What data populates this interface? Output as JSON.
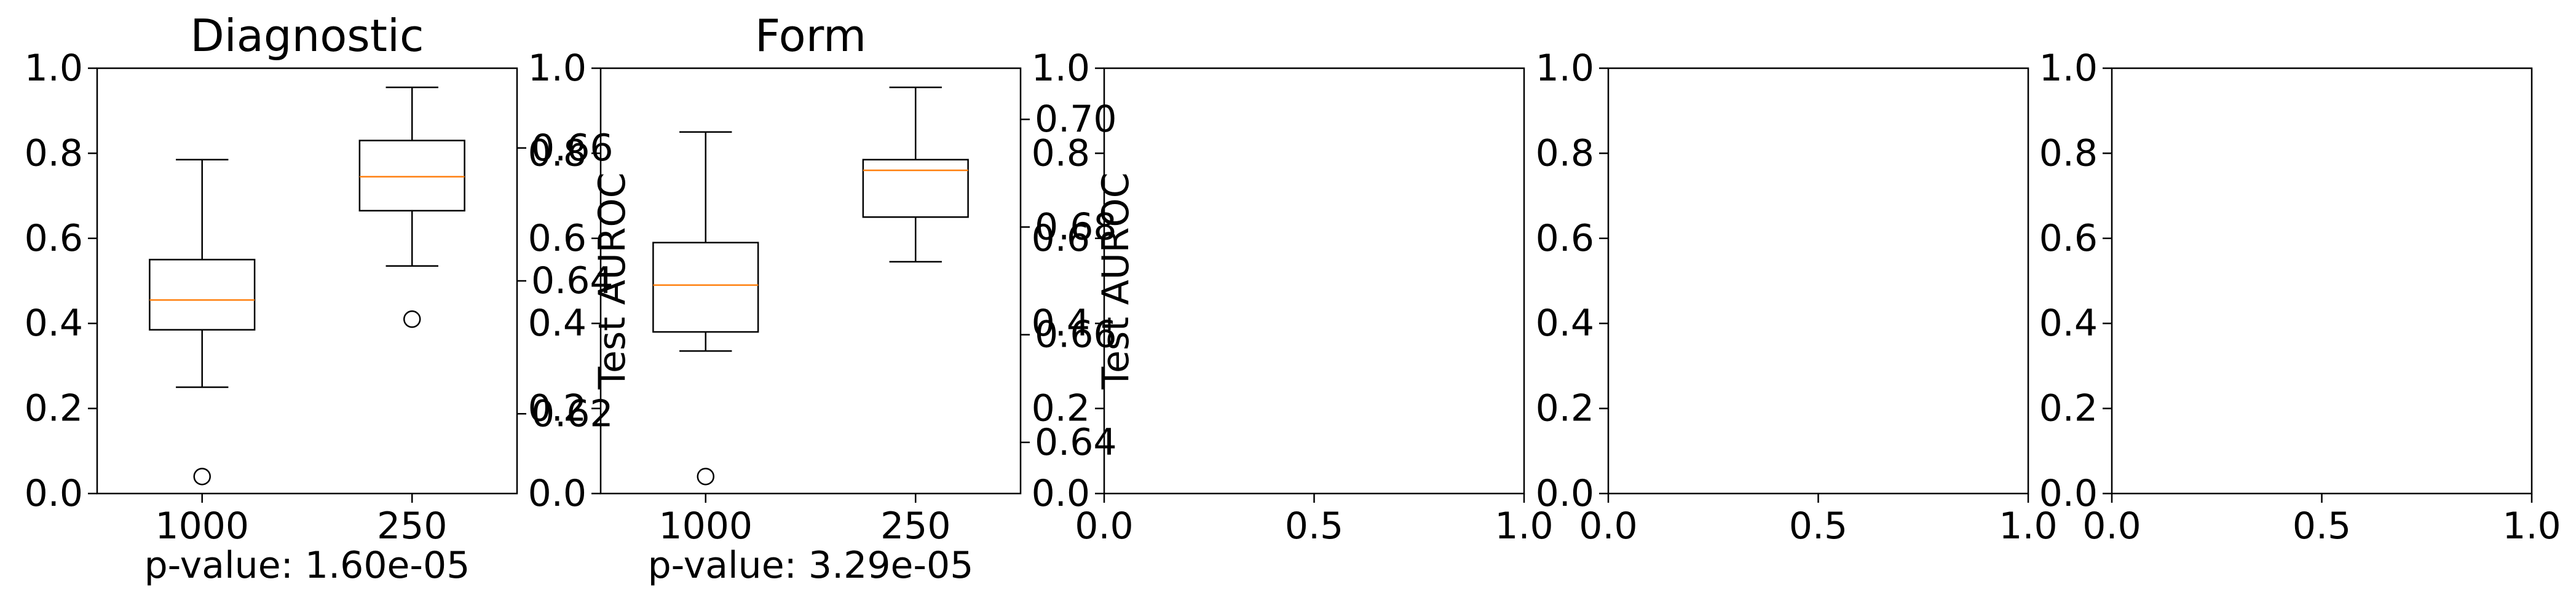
{
  "figure": {
    "y_ticks_default": [
      "0.0",
      "0.2",
      "0.4",
      "0.6",
      "0.8",
      "1.0"
    ],
    "x_ticks_default": [
      "0.0",
      "0.5",
      "1.0"
    ]
  },
  "chart_data": [
    {
      "type": "box",
      "title": "Diagnostic",
      "ylabel": "",
      "categories": [
        "1000",
        "250"
      ],
      "ylim": [
        0,
        1
      ],
      "y_ticks": [
        "0.0",
        "0.2",
        "0.4",
        "0.6",
        "0.8",
        "1.0"
      ],
      "boxes": [
        {
          "category": "1000",
          "whisker_low": 0.25,
          "q1": 0.385,
          "median": 0.455,
          "q3": 0.55,
          "whisker_high": 0.785,
          "fliers": [
            0.04
          ]
        },
        {
          "category": "250",
          "whisker_low": 0.535,
          "q1": 0.665,
          "median": 0.745,
          "q3": 0.83,
          "whisker_high": 0.955,
          "fliers": [
            0.41
          ]
        }
      ],
      "note": "p-value: 1.60e-05",
      "twin_axis": {
        "ylabel": "Test AUROC",
        "ylim": [
          0.608,
          0.672
        ],
        "ticks": [
          0.62,
          0.64,
          0.66
        ],
        "tick_labels": [
          "0.62",
          "0.64",
          "0.66"
        ]
      }
    },
    {
      "type": "box",
      "title": "Form",
      "ylabel": "",
      "categories": [
        "1000",
        "250"
      ],
      "ylim": [
        0,
        1
      ],
      "y_ticks": [
        "0.0",
        "0.2",
        "0.4",
        "0.6",
        "0.8",
        "1.0"
      ],
      "boxes": [
        {
          "category": "1000",
          "whisker_low": 0.335,
          "q1": 0.38,
          "median": 0.49,
          "q3": 0.59,
          "whisker_high": 0.85,
          "fliers": [
            0.04
          ]
        },
        {
          "category": "250",
          "whisker_low": 0.545,
          "q1": 0.65,
          "median": 0.76,
          "q3": 0.785,
          "whisker_high": 0.955,
          "fliers": []
        }
      ],
      "note": "p-value: 3.29e-05",
      "twin_axis": {
        "ylabel": "Test AUROC",
        "ylim": [
          0.6305,
          0.7095
        ],
        "ticks": [
          0.64,
          0.66,
          0.68,
          0.7
        ],
        "tick_labels": [
          "0.64",
          "0.66",
          "0.68",
          "0.70"
        ]
      }
    },
    {
      "type": "empty",
      "xlim": [
        0,
        1
      ],
      "ylim": [
        0,
        1
      ],
      "x_ticks": [
        "0.0",
        "0.5",
        "1.0"
      ],
      "y_ticks": [
        "0.0",
        "0.2",
        "0.4",
        "0.6",
        "0.8",
        "1.0"
      ]
    },
    {
      "type": "empty",
      "xlim": [
        0,
        1
      ],
      "ylim": [
        0,
        1
      ],
      "x_ticks": [
        "0.0",
        "0.5",
        "1.0"
      ],
      "y_ticks": [
        "0.0",
        "0.2",
        "0.4",
        "0.6",
        "0.8",
        "1.0"
      ]
    },
    {
      "type": "empty",
      "xlim": [
        0,
        1
      ],
      "ylim": [
        0,
        1
      ],
      "x_ticks": [
        "0.0",
        "0.5",
        "1.0"
      ],
      "y_ticks": [
        "0.0",
        "0.2",
        "0.4",
        "0.6",
        "0.8",
        "1.0"
      ]
    }
  ],
  "colors": {
    "median": "#ff7f0e",
    "box": "#000000",
    "background": "#ffffff"
  }
}
